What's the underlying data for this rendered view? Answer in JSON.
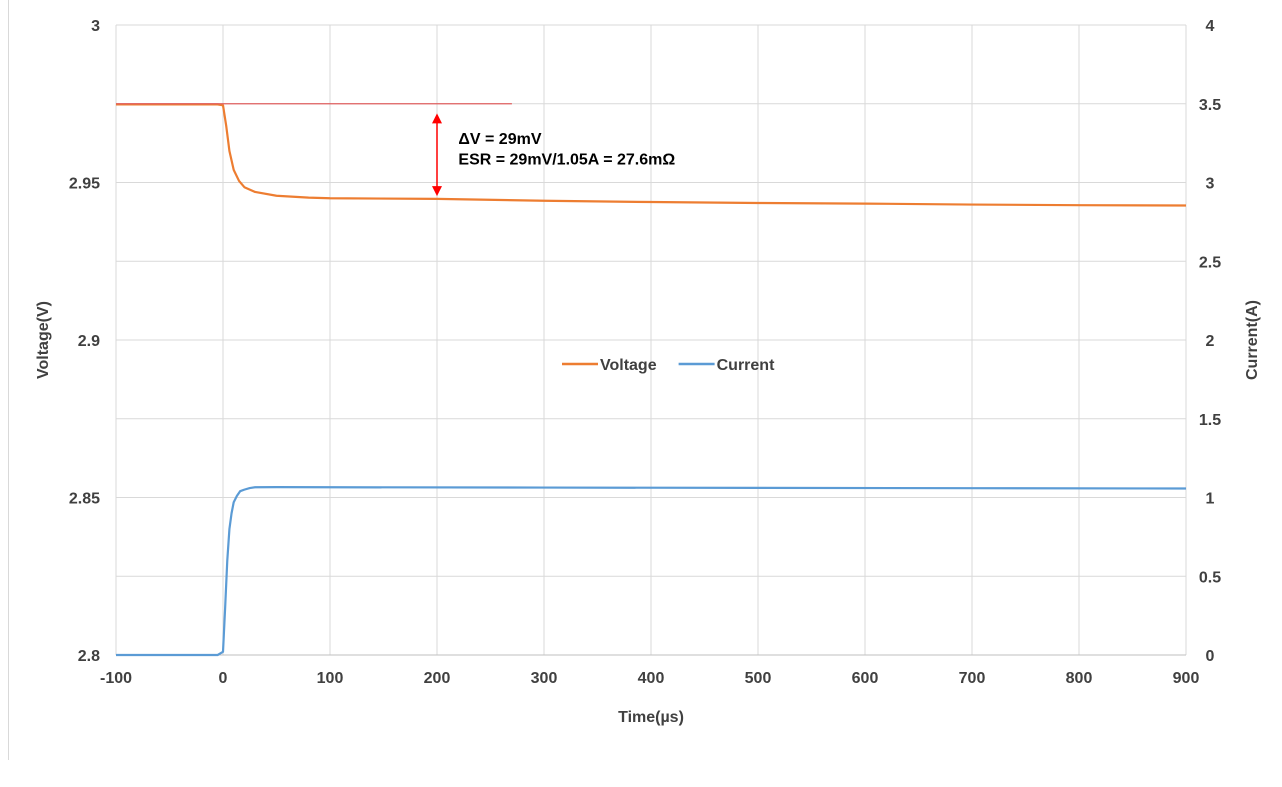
{
  "chart_data": {
    "type": "line",
    "title": "",
    "xlabel": "Time(µs)",
    "ylabel": "Voltage(V)",
    "y2label": "Current(A)",
    "xlim": [
      -100,
      900
    ],
    "ylim": [
      2.8,
      3.0
    ],
    "y2lim": [
      0,
      4
    ],
    "x_ticks": [
      "-100",
      "0",
      "100",
      "200",
      "300",
      "400",
      "500",
      "600",
      "700",
      "800",
      "900"
    ],
    "y_ticks": [
      "2.8",
      "2.85",
      "2.9",
      "2.95",
      "3"
    ],
    "y2_ticks": [
      "0",
      "0.5",
      "1",
      "1.5",
      "2",
      "2.5",
      "3",
      "3.5",
      "4"
    ],
    "grid": true,
    "legend_position": "center",
    "series": [
      {
        "name": "Voltage",
        "axis": "left",
        "color": "#ed7d31",
        "x": [
          -100,
          -50,
          -5,
          0,
          3,
          6,
          10,
          15,
          20,
          30,
          50,
          80,
          100,
          200,
          300,
          400,
          500,
          600,
          700,
          800,
          900
        ],
        "y": [
          2.9748,
          2.9748,
          2.9748,
          2.9745,
          2.968,
          2.96,
          2.954,
          2.9505,
          2.9485,
          2.947,
          2.9458,
          2.9452,
          2.945,
          2.9448,
          2.9442,
          2.9438,
          2.9435,
          2.9433,
          2.943,
          2.9428,
          2.9427
        ]
      },
      {
        "name": "Current",
        "axis": "right",
        "color": "#5b9bd5",
        "x": [
          -100,
          -5,
          0,
          2,
          4,
          6,
          8,
          10,
          13,
          16,
          20,
          25,
          30,
          50,
          100,
          300,
          500,
          700,
          900
        ],
        "y": [
          0,
          0,
          0.02,
          0.3,
          0.6,
          0.8,
          0.9,
          0.97,
          1.01,
          1.04,
          1.05,
          1.06,
          1.065,
          1.066,
          1.065,
          1.063,
          1.061,
          1.059,
          1.057
        ]
      }
    ],
    "annotations": {
      "reference_line": {
        "x": [
          -100,
          270
        ],
        "y": 2.975,
        "color": "#e06060"
      },
      "arrow": {
        "x": 200,
        "y_from": 2.9745,
        "y_to": 2.946,
        "color": "#ff0000"
      },
      "line1": "ΔV = 29mV",
      "line2": "ESR = 29mV/1.05A = 27.6mΩ",
      "text_x": 220,
      "text_y1": 2.9622,
      "text_y2": 2.9557
    }
  }
}
